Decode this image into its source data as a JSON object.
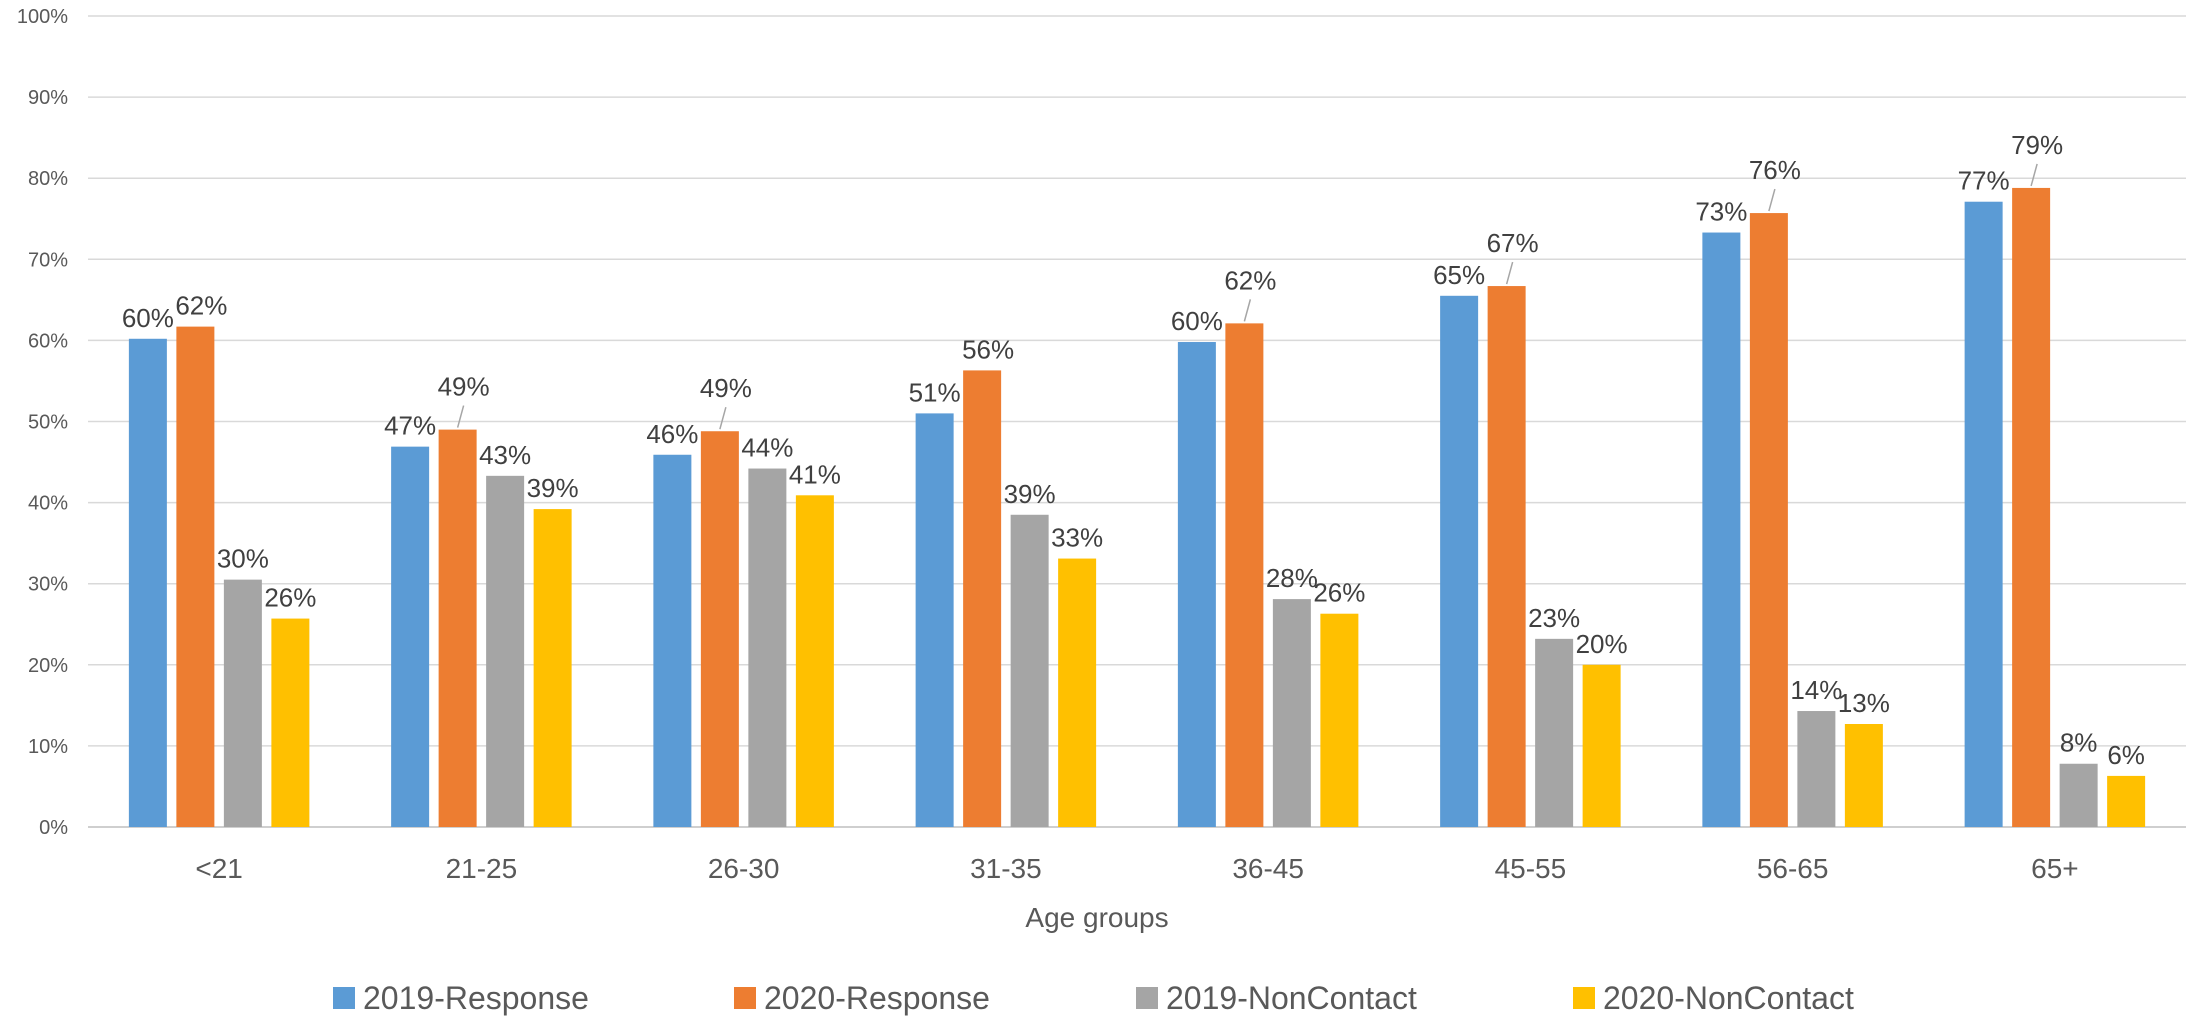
{
  "chart_data": {
    "type": "bar",
    "title": "",
    "xlabel": "Age groups",
    "ylabel": "",
    "ylim": [
      0,
      100
    ],
    "ytick_step": 10,
    "ytick_suffix": "%",
    "grid": true,
    "legend_position": "bottom",
    "categories": [
      "<21",
      "21-25",
      "26-30",
      "31-35",
      "36-45",
      "45-55",
      "56-65",
      "65+"
    ],
    "series": [
      {
        "name": "2019-Response",
        "color": "#5b9bd5",
        "values": [
          60.2,
          46.9,
          45.9,
          51.0,
          59.8,
          65.5,
          73.3,
          77.1
        ],
        "labels": [
          "60%",
          "47%",
          "46%",
          "51%",
          "60%",
          "65%",
          "73%",
          "77%"
        ]
      },
      {
        "name": "2020-Response",
        "color": "#ed7d31",
        "values": [
          61.7,
          49.0,
          48.8,
          56.3,
          62.1,
          66.7,
          75.7,
          78.8
        ],
        "labels": [
          "62%",
          "49%",
          "49%",
          "56%",
          "62%",
          "67%",
          "76%",
          "79%"
        ]
      },
      {
        "name": "2019-NonContact",
        "color": "#a5a5a5",
        "values": [
          30.5,
          43.3,
          44.2,
          38.5,
          28.1,
          23.2,
          14.3,
          7.8
        ],
        "labels": [
          "30%",
          "43%",
          "44%",
          "39%",
          "28%",
          "23%",
          "14%",
          "8%"
        ]
      },
      {
        "name": "2020-NonContact",
        "color": "#ffc000",
        "values": [
          25.7,
          39.2,
          40.9,
          33.1,
          26.3,
          20.0,
          12.7,
          6.3
        ],
        "labels": [
          "26%",
          "39%",
          "41%",
          "33%",
          "26%",
          "20%",
          "13%",
          "6%"
        ]
      }
    ]
  }
}
